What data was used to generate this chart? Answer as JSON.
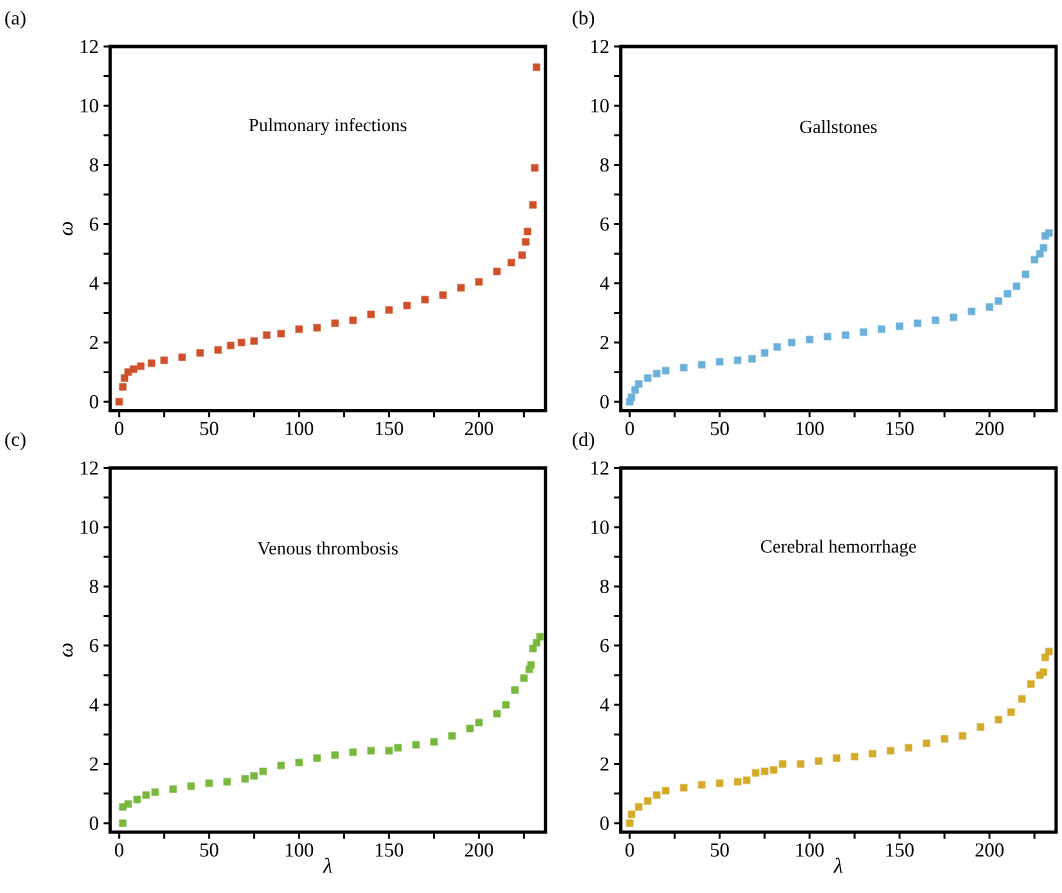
{
  "chart_data": [
    {
      "type": "scatter",
      "title": "(a)",
      "annotations": [
        "Pulmonary infections"
      ],
      "ylabel": "ω",
      "marker": "square",
      "xlim": [
        -5,
        237
      ],
      "ylim": [
        -0.3,
        12
      ],
      "xticks": [
        0,
        {
          "value": 25,
          "label": null
        },
        50,
        {
          "value": 75,
          "label": null
        },
        100,
        {
          "value": 125,
          "label": null
        },
        150,
        {
          "value": 175,
          "label": null
        },
        200,
        {
          "value": 225,
          "label": null
        }
      ],
      "yticks": [
        0,
        {
          "value": 1,
          "label": null
        },
        2,
        {
          "value": 3,
          "label": null
        },
        4,
        {
          "value": 5,
          "label": null
        },
        6,
        {
          "value": 7,
          "label": null
        },
        8,
        {
          "value": 9,
          "label": null
        },
        10,
        {
          "value": 11,
          "label": null
        },
        12
      ],
      "series": [
        {
          "color": "#d0502a",
          "x": [
            0,
            2,
            3,
            5,
            8,
            12,
            18,
            25,
            35,
            45,
            55,
            62,
            68,
            75,
            82,
            90,
            100,
            110,
            120,
            130,
            140,
            150,
            160,
            170,
            180,
            190,
            200,
            210,
            218,
            224,
            226,
            227,
            229,
            230,
            231,
            232
          ],
          "values": [
            0,
            0.5,
            0.8,
            1.0,
            1.1,
            1.2,
            1.3,
            1.4,
            1.5,
            1.65,
            1.75,
            1.9,
            2.0,
            2.05,
            2.25,
            2.3,
            2.45,
            2.5,
            2.65,
            2.75,
            2.95,
            3.1,
            3.25,
            3.45,
            3.6,
            3.85,
            4.05,
            4.4,
            4.7,
            4.95,
            5.4,
            5.75,
            null,
            6.65,
            7.9,
            11.3
          ]
        }
      ]
    },
    {
      "type": "scatter",
      "title": "(b)",
      "annotations": [
        "Gallstones"
      ],
      "marker": "square",
      "xlim": [
        -5,
        237
      ],
      "ylim": [
        -0.3,
        12
      ],
      "xticks": [
        0,
        {
          "value": 25,
          "label": null
        },
        50,
        {
          "value": 75,
          "label": null
        },
        100,
        {
          "value": 125,
          "label": null
        },
        150,
        {
          "value": 175,
          "label": null
        },
        200,
        {
          "value": 225,
          "label": null
        }
      ],
      "yticks": [
        0,
        {
          "value": 1,
          "label": null
        },
        2,
        {
          "value": 3,
          "label": null
        },
        4,
        {
          "value": 5,
          "label": null
        },
        6,
        {
          "value": 7,
          "label": null
        },
        8,
        {
          "value": 9,
          "label": null
        },
        10,
        {
          "value": 11,
          "label": null
        },
        12
      ],
      "series": [
        {
          "color": "#6ab0d8",
          "x": [
            0,
            1,
            3,
            5,
            10,
            15,
            20,
            30,
            40,
            50,
            60,
            68,
            75,
            82,
            90,
            100,
            110,
            120,
            130,
            140,
            150,
            160,
            170,
            180,
            190,
            200,
            205,
            210,
            215,
            220,
            225,
            228,
            230,
            231,
            233
          ],
          "values": [
            0,
            0.15,
            0.4,
            0.6,
            0.8,
            0.95,
            1.05,
            1.15,
            1.25,
            1.35,
            1.4,
            1.45,
            1.65,
            1.85,
            2.0,
            2.1,
            2.2,
            2.25,
            2.35,
            2.45,
            2.55,
            2.65,
            2.75,
            2.85,
            3.05,
            3.2,
            3.4,
            3.65,
            3.9,
            4.3,
            4.8,
            5.0,
            5.2,
            5.6,
            5.7
          ]
        }
      ]
    },
    {
      "type": "scatter",
      "title": "(c)",
      "annotations": [
        "Venous thrombosis"
      ],
      "xlabel": "λ",
      "ylabel": "ω",
      "marker": "square",
      "xlim": [
        -5,
        237
      ],
      "ylim": [
        -0.3,
        12
      ],
      "xticks": [
        0,
        {
          "value": 25,
          "label": null
        },
        50,
        {
          "value": 75,
          "label": null
        },
        100,
        {
          "value": 125,
          "label": null
        },
        150,
        {
          "value": 175,
          "label": null
        },
        200,
        {
          "value": 225,
          "label": null
        }
      ],
      "yticks": [
        0,
        {
          "value": 1,
          "label": null
        },
        2,
        {
          "value": 3,
          "label": null
        },
        4,
        {
          "value": 5,
          "label": null
        },
        6,
        {
          "value": 7,
          "label": null
        },
        8,
        {
          "value": 9,
          "label": null
        },
        10,
        {
          "value": 11,
          "label": null
        },
        12
      ],
      "series": [
        {
          "color": "#78b83c",
          "x": [
            2,
            2,
            5,
            10,
            15,
            20,
            30,
            40,
            50,
            60,
            70,
            75,
            80,
            90,
            100,
            110,
            120,
            130,
            140,
            150,
            155,
            165,
            175,
            185,
            195,
            200,
            210,
            215,
            220,
            225,
            228,
            229,
            230,
            232,
            234
          ],
          "values": [
            0,
            0.55,
            0.65,
            0.8,
            0.95,
            1.05,
            1.15,
            1.25,
            1.35,
            1.4,
            1.5,
            1.6,
            1.75,
            1.95,
            2.05,
            2.2,
            2.3,
            2.4,
            2.45,
            2.45,
            2.55,
            2.65,
            2.75,
            2.95,
            3.2,
            3.4,
            3.7,
            4.0,
            4.5,
            4.9,
            5.2,
            5.35,
            5.9,
            6.1,
            6.3
          ]
        }
      ]
    },
    {
      "type": "scatter",
      "title": "(d)",
      "annotations": [
        "Cerebral hemorrhage"
      ],
      "xlabel": "λ",
      "marker": "square",
      "xlim": [
        -5,
        237
      ],
      "ylim": [
        -0.3,
        12
      ],
      "xticks": [
        0,
        {
          "value": 25,
          "label": null
        },
        50,
        {
          "value": 75,
          "label": null
        },
        100,
        {
          "value": 125,
          "label": null
        },
        150,
        {
          "value": 175,
          "label": null
        },
        200,
        {
          "value": 225,
          "label": null
        }
      ],
      "yticks": [
        0,
        {
          "value": 1,
          "label": null
        },
        2,
        {
          "value": 3,
          "label": null
        },
        4,
        {
          "value": 5,
          "label": null
        },
        6,
        {
          "value": 7,
          "label": null
        },
        8,
        {
          "value": 9,
          "label": null
        },
        10,
        {
          "value": 11,
          "label": null
        },
        12
      ],
      "series": [
        {
          "color": "#d4aa28",
          "x": [
            0,
            1,
            5,
            10,
            15,
            20,
            30,
            40,
            50,
            60,
            65,
            70,
            75,
            80,
            85,
            95,
            105,
            115,
            125,
            135,
            145,
            155,
            165,
            175,
            185,
            195,
            205,
            212,
            218,
            223,
            228,
            230,
            231,
            233
          ],
          "values": [
            0,
            0.3,
            0.55,
            0.75,
            0.95,
            1.1,
            1.2,
            1.3,
            1.35,
            1.4,
            1.45,
            1.7,
            1.75,
            1.8,
            2.0,
            2.0,
            2.1,
            2.2,
            2.25,
            2.35,
            2.45,
            2.55,
            2.7,
            2.85,
            2.95,
            3.25,
            3.5,
            3.75,
            4.2,
            4.7,
            5.0,
            5.1,
            5.6,
            5.8
          ]
        }
      ]
    }
  ]
}
